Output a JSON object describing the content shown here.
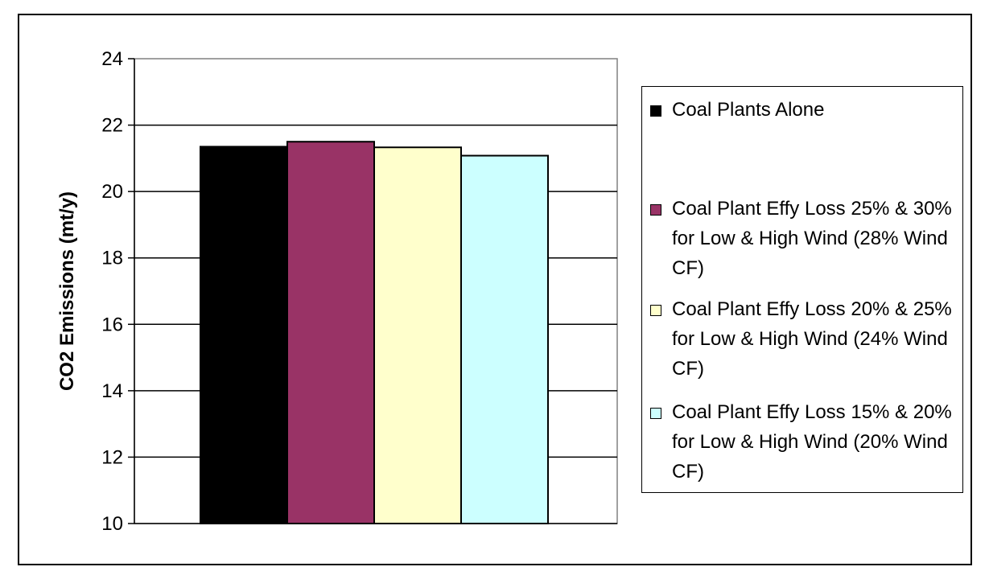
{
  "chart_data": {
    "type": "bar",
    "title": "",
    "xlabel": "",
    "ylabel": "CO2 Emissions (mt/y)",
    "ylim": [
      10,
      24
    ],
    "yticks": [
      10,
      12,
      14,
      16,
      18,
      20,
      22,
      24
    ],
    "grid": true,
    "legend_position": "right",
    "categories": [
      ""
    ],
    "series": [
      {
        "name": "Coal Plants Alone",
        "values": [
          21.35
        ],
        "color": "#000000"
      },
      {
        "name": "Coal Plant Effy Loss 25% & 30% for Low & High Wind (28% Wind CF)",
        "values": [
          21.5
        ],
        "color": "#993366"
      },
      {
        "name": "Coal Plant Effy Loss 20% & 25% for Low & High Wind (24% Wind CF)",
        "values": [
          21.33
        ],
        "color": "#FFFFCC"
      },
      {
        "name": "Coal Plant Effy Loss 15% & 20% for Low & High Wind (20% Wind CF)",
        "values": [
          21.08
        ],
        "color": "#CCFFFF"
      }
    ]
  }
}
